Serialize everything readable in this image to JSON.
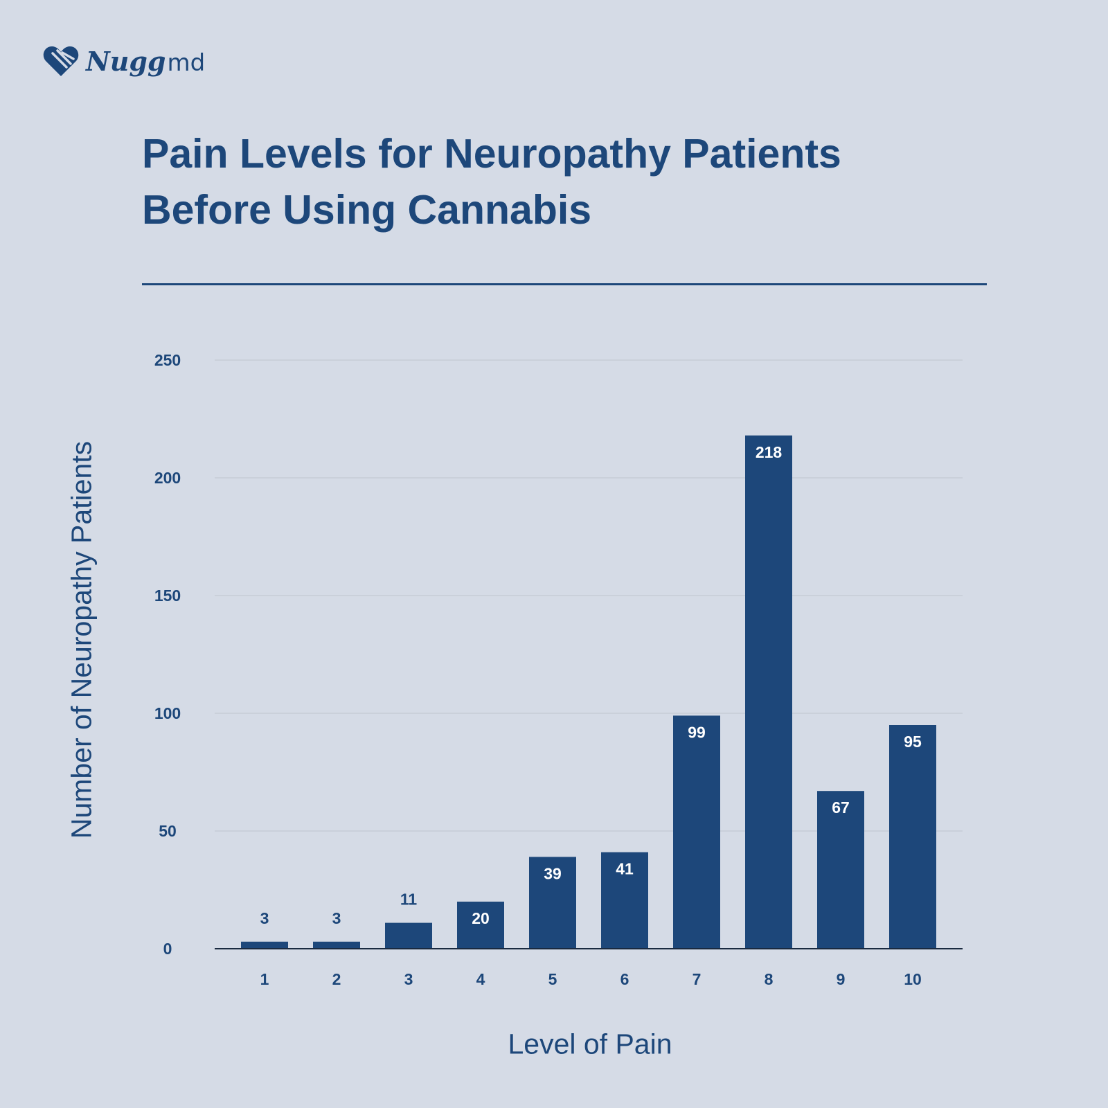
{
  "brand": {
    "logo_icon": "heart-icon",
    "name": "Nugg",
    "suffix": "md"
  },
  "colors": {
    "background": "#d5dbe6",
    "bar": "#1d477a",
    "text": "#1d477a",
    "grid": "#c7ccd6",
    "label_on_bar": "#ffffff"
  },
  "chart_data": {
    "type": "bar",
    "title": "Pain Levels for Neuropathy Patients Before Using Cannabis",
    "xlabel": "Level of Pain",
    "ylabel": "Number of Neuropathy Patients",
    "categories": [
      "1",
      "2",
      "3",
      "4",
      "5",
      "6",
      "7",
      "8",
      "9",
      "10"
    ],
    "values": [
      3,
      3,
      11,
      20,
      39,
      41,
      99,
      218,
      67,
      95
    ],
    "data_labels": [
      "3",
      "3",
      "11",
      "20",
      "39",
      "41",
      "99",
      "218",
      "67",
      "95"
    ],
    "yticks": [
      0,
      50,
      100,
      150,
      200,
      250
    ],
    "ylim": [
      0,
      250
    ],
    "grid": true,
    "legend": "none"
  }
}
